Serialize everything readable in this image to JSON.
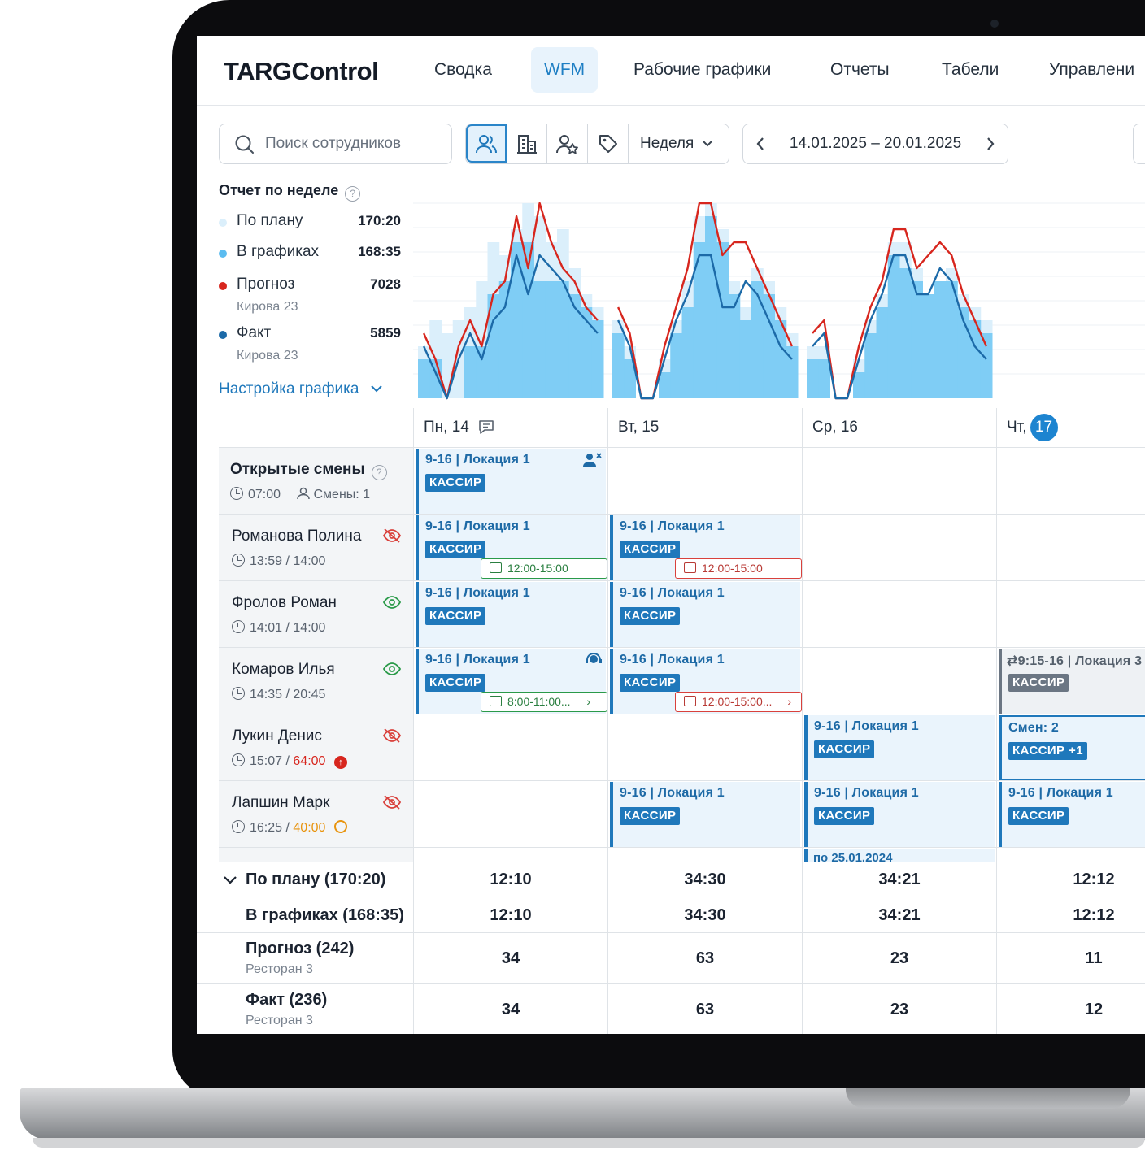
{
  "nav": {
    "logo": "TARGControl",
    "items": [
      "Сводка",
      "WFM",
      "Рабочие графики",
      "Отчеты",
      "Табели",
      "Управлени"
    ]
  },
  "toolbar": {
    "search_placeholder": "Поиск сотрудников",
    "period": "Неделя",
    "date_range": "14.01.2025 – 20.01.2025",
    "icons": [
      "users-icon",
      "building-icon",
      "user-star-icon",
      "tag-icon"
    ]
  },
  "report": {
    "title": "Отчет по неделе",
    "legend": [
      {
        "label": "По плану",
        "value": "170:20",
        "sub": "",
        "color": "#dbeffb"
      },
      {
        "label": "В графиках",
        "value": "168:35",
        "sub": "",
        "color": "#5bbcf0"
      },
      {
        "label": "Прогноз",
        "value": "7028",
        "sub": "Кирова 23",
        "color": "#d7261e"
      },
      {
        "label": "Факт",
        "value": "5859",
        "sub": "Кирова 23",
        "color": "#1c6aa8"
      }
    ],
    "settings_link": "Настройка графика"
  },
  "colors": {
    "accent": "#1f78bb",
    "plan": "#dbeffb",
    "scheduled": "#7fcdf5",
    "forecast": "#d7261e",
    "fact": "#1c6aa8",
    "ok": "#2a9a49",
    "warn": "#d9413c"
  },
  "chart_data": {
    "type": "area",
    "days": [
      {
        "plan": [
          4,
          6,
          5,
          6,
          7,
          9,
          12,
          11,
          13,
          15,
          14,
          12,
          13,
          10,
          8,
          7
        ],
        "scheduled": [
          3,
          3,
          0,
          0,
          4,
          4,
          8,
          9,
          12,
          12,
          9,
          9,
          9,
          8,
          7,
          6
        ],
        "forecast": [
          5,
          3,
          0,
          4,
          6,
          4,
          8,
          9,
          14,
          10,
          15,
          12,
          10,
          9,
          7,
          6
        ],
        "fact": [
          4,
          2,
          0,
          3,
          5,
          3,
          6,
          7,
          11,
          8,
          11,
          10,
          9,
          7,
          6,
          5
        ]
      },
      {
        "plan": [
          6,
          4,
          0,
          0,
          3,
          6,
          9,
          14,
          15,
          13,
          9,
          7,
          10,
          9,
          7,
          5
        ],
        "scheduled": [
          5,
          3,
          0,
          0,
          2,
          5,
          7,
          12,
          14,
          12,
          8,
          6,
          9,
          8,
          6,
          4
        ],
        "forecast": [
          7,
          5,
          0,
          0,
          4,
          7,
          10,
          15,
          15,
          11,
          12,
          12,
          10,
          8,
          6,
          4
        ],
        "fact": [
          6,
          4,
          0,
          0,
          3,
          6,
          8,
          11,
          11,
          7,
          7,
          9,
          8,
          6,
          4,
          3
        ]
      },
      {
        "plan": [
          4,
          4,
          0,
          0,
          3,
          6,
          8,
          12,
          12,
          10,
          8,
          9,
          10,
          8,
          7,
          6
        ],
        "scheduled": [
          3,
          3,
          0,
          0,
          2,
          5,
          7,
          11,
          10,
          9,
          8,
          9,
          9,
          7,
          6,
          5
        ],
        "forecast": [
          5,
          6,
          0,
          0,
          4,
          7,
          9,
          13,
          13,
          10,
          11,
          12,
          11,
          8,
          6,
          4
        ],
        "fact": [
          4,
          5,
          0,
          0,
          3,
          6,
          8,
          11,
          11,
          8,
          8,
          10,
          9,
          6,
          4,
          3
        ]
      }
    ]
  },
  "grid": {
    "days": [
      {
        "label": "Пн, 14",
        "today": ""
      },
      {
        "label": "Вт, 15",
        "today": ""
      },
      {
        "label": "Ср, 16",
        "today": ""
      },
      {
        "label": "Чт,",
        "today": "17"
      }
    ],
    "open_shifts": {
      "title": "Открытые смены",
      "time": "07:00",
      "count": "Смены: 1"
    },
    "shift_text": "9-16 | Локация 1",
    "role": "КАССИР",
    "employees": [
      {
        "name": "Романова Полина",
        "worked": "13:59",
        "norm": "14:00",
        "visibility": "hidden"
      },
      {
        "name": "Фролов Роман",
        "worked": "14:01",
        "norm": "14:00",
        "visibility": "visible"
      },
      {
        "name": "Комаров Илья",
        "worked": "14:35",
        "norm": "20:45",
        "visibility": "visible"
      },
      {
        "name": "Лукин Денис",
        "worked": "15:07",
        "norm": "64:00",
        "visibility": "hidden"
      },
      {
        "name": "Лапшин Марк",
        "worked": "16:25",
        "norm": "40:00",
        "visibility": "hidden"
      }
    ],
    "pills": {
      "p1": "12:00-15:00",
      "p2": "12:00-15:00",
      "p3": "8:00-11:00...",
      "p4": "12:00-15:00..."
    },
    "swap_shift": "9:15-16 | Локация 3",
    "multi_shift": {
      "count": "Смен: 2",
      "role": "КАССИР +1"
    },
    "partial_row_text": "по 25.01.2024"
  },
  "totals": [
    {
      "label": "По плану (170:20)",
      "sub": "",
      "values": [
        "12:10",
        "34:30",
        "34:21",
        "12:12"
      ]
    },
    {
      "label": "В графиках (168:35)",
      "sub": "",
      "values": [
        "12:10",
        "34:30",
        "34:21",
        "12:12"
      ]
    },
    {
      "label": "Прогноз (242)",
      "sub": "Ресторан 3",
      "values": [
        "34",
        "63",
        "23",
        "11"
      ]
    },
    {
      "label": "Факт (236)",
      "sub": "Ресторан 3",
      "values": [
        "34",
        "63",
        "23",
        "12"
      ]
    }
  ]
}
